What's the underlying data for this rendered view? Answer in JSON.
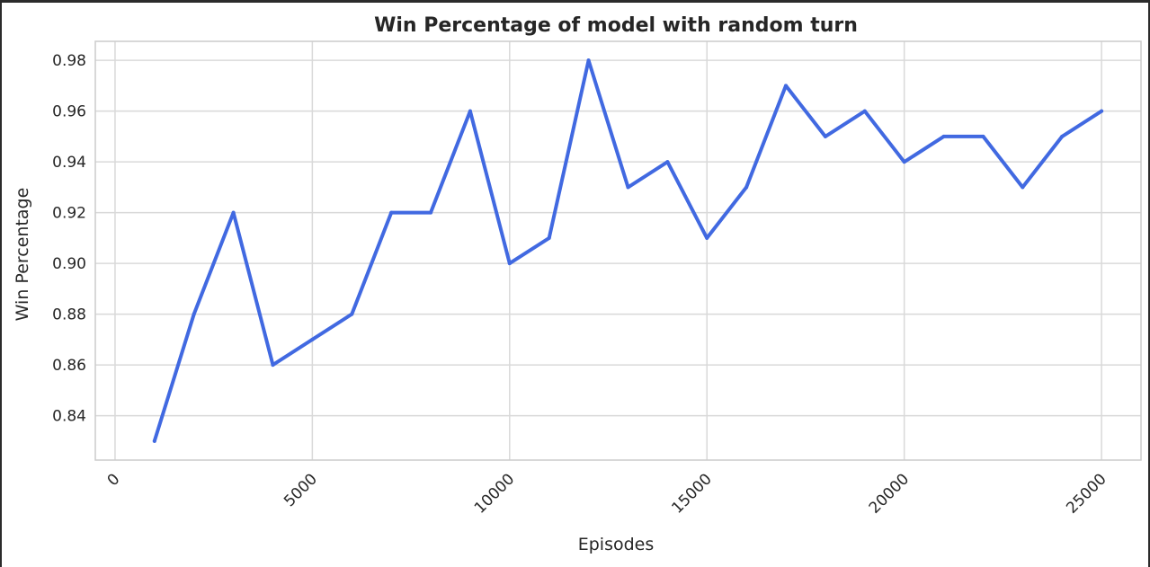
{
  "chart_data": {
    "type": "line",
    "title": "Win Percentage of model with random turn",
    "xlabel": "Episodes",
    "ylabel": "Win Percentage",
    "xlim": [
      -500,
      26000
    ],
    "ylim": [
      0.8225,
      0.9875
    ],
    "xticks": [
      0,
      5000,
      10000,
      15000,
      20000,
      25000
    ],
    "xtick_labels": [
      "0",
      "5000",
      "10000",
      "15000",
      "20000",
      "25000"
    ],
    "yticks": [
      0.84,
      0.86,
      0.88,
      0.9,
      0.92,
      0.94,
      0.96,
      0.98
    ],
    "ytick_labels": [
      "0.84",
      "0.86",
      "0.88",
      "0.90",
      "0.92",
      "0.94",
      "0.96",
      "0.98"
    ],
    "grid": true,
    "series": [
      {
        "color": "#4169e1",
        "x": [
          1000,
          2000,
          3000,
          4000,
          5000,
          6000,
          7000,
          8000,
          9000,
          10000,
          11000,
          12000,
          13000,
          14000,
          15000,
          16000,
          17000,
          18000,
          19000,
          20000,
          21000,
          22000,
          23000,
          24000,
          25000
        ],
        "y": [
          0.83,
          0.88,
          0.92,
          0.86,
          0.87,
          0.88,
          0.92,
          0.92,
          0.96,
          0.9,
          0.91,
          0.98,
          0.93,
          0.94,
          0.91,
          0.93,
          0.97,
          0.95,
          0.96,
          0.94,
          0.95,
          0.95,
          0.93,
          0.95,
          0.96
        ]
      }
    ]
  }
}
